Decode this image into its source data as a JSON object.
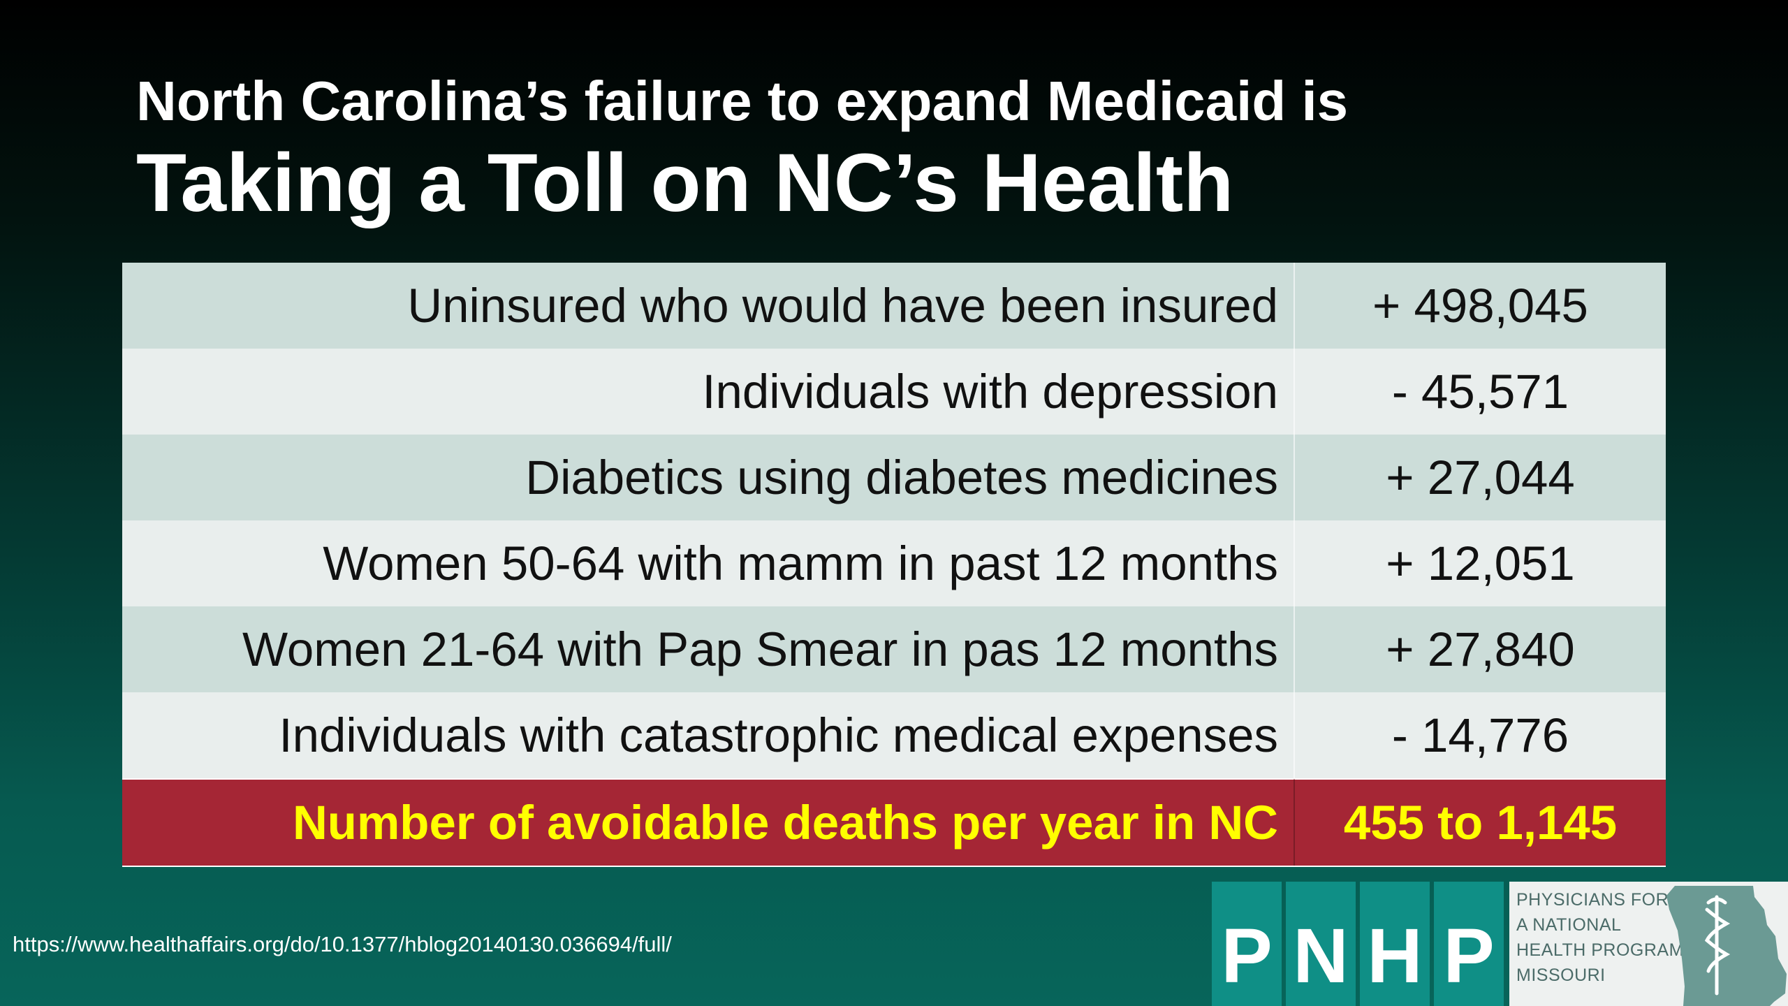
{
  "title": {
    "line1": "North Carolina’s failure to expand Medicaid is",
    "line2": "Taking a Toll on NC’s Health"
  },
  "table": {
    "rows": [
      {
        "label": "Uninsured who would have been insured",
        "value": "+ 498,045"
      },
      {
        "label": "Individuals with depression",
        "value": "- 45,571"
      },
      {
        "label": "Diabetics using diabetes medicines",
        "value": "+ 27,044"
      },
      {
        "label": "Women 50-64 with mamm in past 12 months",
        "value": "+ 12,051"
      },
      {
        "label": "Women 21-64 with Pap Smear in pas 12 months",
        "value": "+ 27,840"
      },
      {
        "label": "Individuals with catastrophic medical expenses",
        "value": "- 14,776"
      }
    ],
    "total": {
      "label": "Number of avoidable deaths per year in NC",
      "value": "455 to 1,145"
    }
  },
  "source_url": "https://www.healthaffairs.org/do/10.1377/hblog20140130.036694/full/",
  "logo": {
    "letters": [
      "P",
      "N",
      "H",
      "P"
    ],
    "text_lines": [
      "PHYSICIANS FOR",
      "A NATIONAL",
      "HEALTH PROGRAM",
      "MISSOURI"
    ],
    "icon": "missouri-state-caduceus-icon"
  },
  "colors": {
    "row_dark": "#ccddd9",
    "row_light": "#e9eeed",
    "total_bg": "#a52635",
    "total_text": "#ffff00",
    "logo_teal": "#0f8f86"
  }
}
